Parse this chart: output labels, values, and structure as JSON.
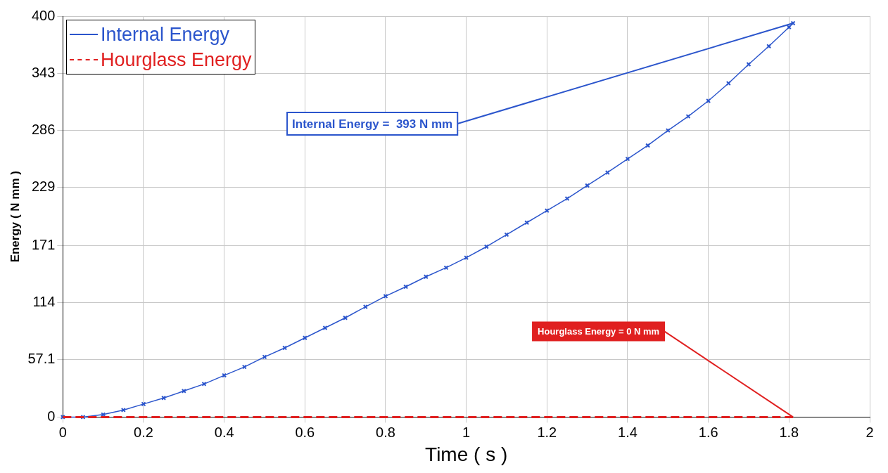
{
  "chart_data": {
    "type": "line",
    "xlabel": "Time ( s )",
    "ylabel": "Energy ( N mm )",
    "xlim": [
      0,
      2
    ],
    "xticks": [
      0,
      0.2,
      0.4,
      0.6,
      0.8,
      1,
      1.2,
      1.4,
      1.6,
      1.8,
      2
    ],
    "ylim": [
      0,
      400
    ],
    "yticks": [
      0,
      57.1,
      114,
      171,
      229,
      286,
      343,
      400
    ],
    "grid": true,
    "legend": "top left",
    "series": [
      {
        "name": "Internal Energy",
        "color": "#2b55cc",
        "marker": "cross",
        "line_style": "solid",
        "x": [
          0,
          0.05,
          0.1,
          0.15,
          0.2,
          0.25,
          0.3,
          0.35,
          0.4,
          0.45,
          0.5,
          0.55,
          0.6,
          0.65,
          0.7,
          0.75,
          0.8,
          0.85,
          0.9,
          0.95,
          1,
          1.05,
          1.1,
          1.15,
          1.2,
          1.25,
          1.3,
          1.35,
          1.4,
          1.45,
          1.5,
          1.55,
          1.6,
          1.65,
          1.7,
          1.75,
          1.8,
          1.81
        ],
        "values": [
          0,
          0,
          2.5,
          7,
          13,
          19,
          26,
          33,
          41.6,
          50,
          60,
          69,
          79,
          89,
          99,
          110,
          120.6,
          130,
          140,
          149,
          159,
          170,
          182,
          194,
          206,
          218,
          231,
          244,
          257.6,
          271,
          286,
          300,
          315.5,
          333,
          352,
          370,
          389,
          393
        ]
      },
      {
        "name": "Hourglass Energy",
        "color": "#e02020",
        "marker": "none",
        "line_style": "dashed",
        "x": [
          0,
          1.81
        ],
        "values": [
          0,
          0
        ]
      }
    ],
    "annotations": [
      {
        "text": "Internal Energy =  393 N mm",
        "x": 1.81,
        "y": 393
      },
      {
        "text": "Hourglass Energy = 0 N mm",
        "x": 1.81,
        "y": 0
      }
    ]
  }
}
